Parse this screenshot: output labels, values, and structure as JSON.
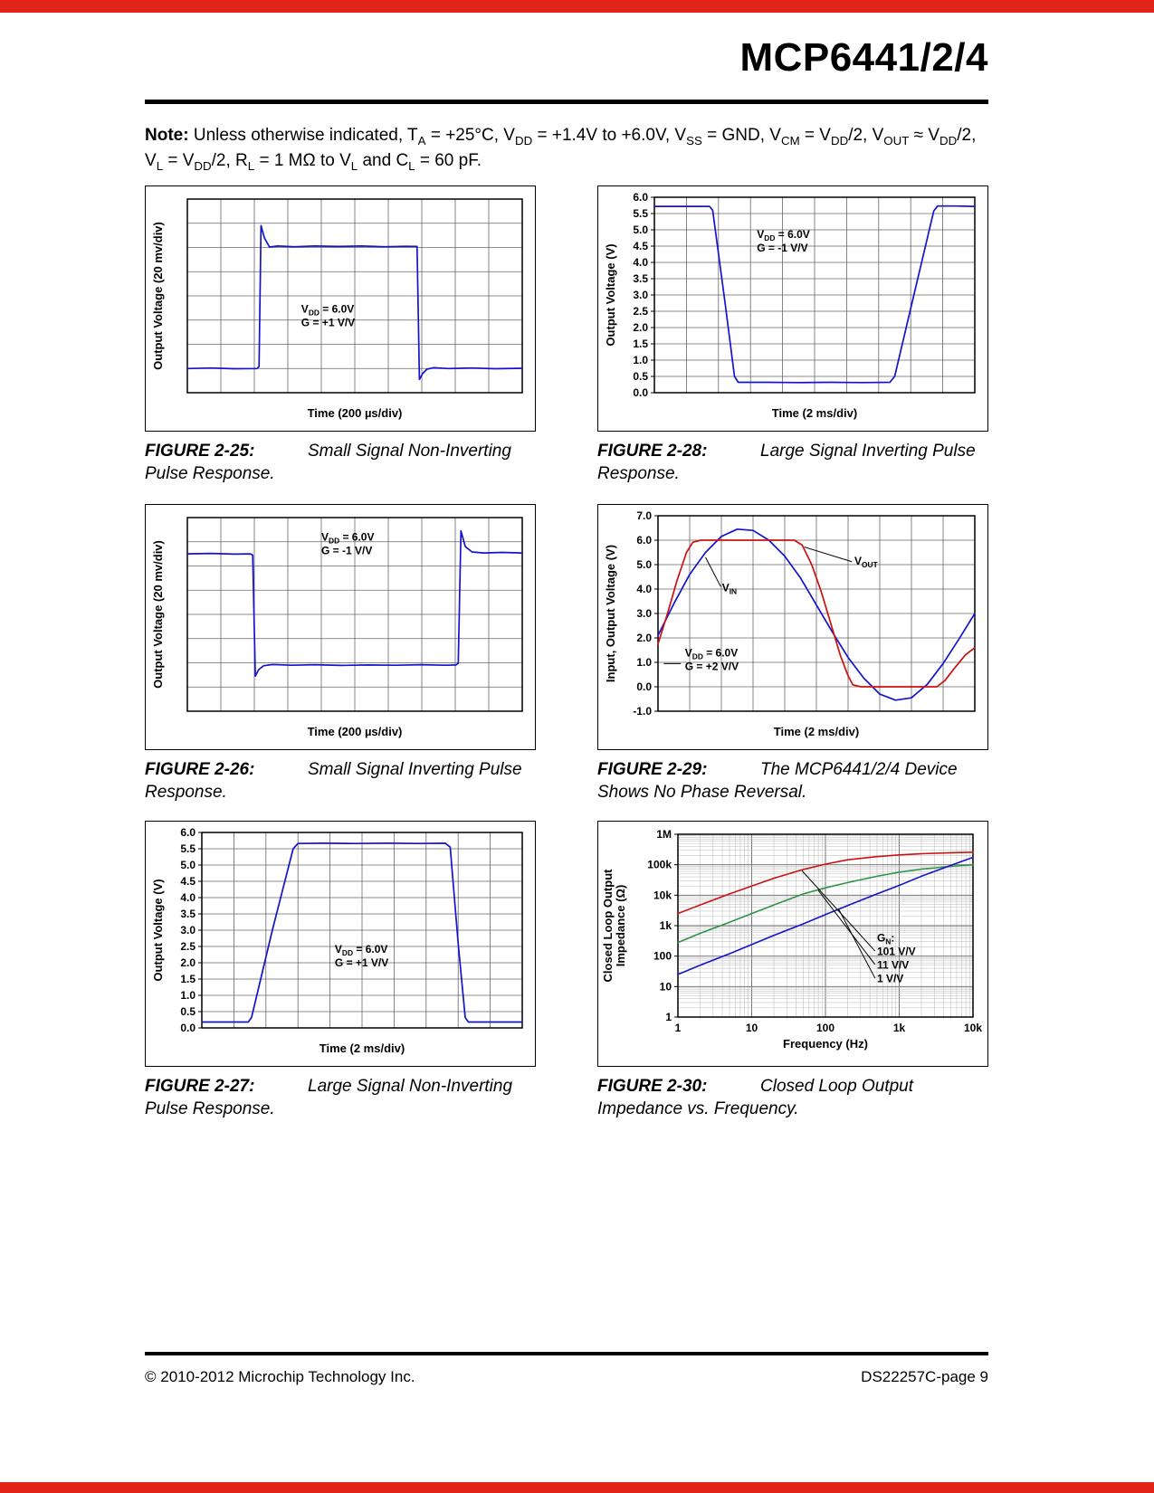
{
  "page": {
    "title": "MCP6441/2/4",
    "note_label": "Note:",
    "note_text": " Unless otherwise indicated, T~A~ = +25°C, V~DD~ = +1.4V to +6.0V, V~SS~ = GND, V~CM~ = V~DD~/2, V~OUT~ ≈ V~DD~/2, V~L~ = V~DD~/2, R~L~ = 1 MΩ to V~L~ and C~L~ = 60 pF.",
    "footer_left": "© 2010-2012 Microchip Technology Inc.",
    "footer_right": "DS22257C-page 9"
  },
  "colors": {
    "brand_red": "#E2231A",
    "trace_blue": "#1414CC",
    "trace_red": "#CC1111",
    "trace_green": "#2E9444"
  },
  "figures": [
    {
      "label": "FIGURE 2-25:",
      "caption": "Small Signal Non-Inverting Pulse Response.",
      "chart_data": {
        "type": "line",
        "xscale": "linear",
        "yscale": "linear",
        "xlim": [
          0,
          10
        ],
        "ylim": [
          0,
          8
        ],
        "xlabel": "Time (200 µs/div)",
        "ylabel": "Output Voltage (20 mv/div)",
        "xgrid": [
          1,
          2,
          3,
          4,
          5,
          6,
          7,
          8,
          9
        ],
        "ygrid": [
          1,
          2,
          3,
          4,
          5,
          6,
          7
        ],
        "margins": {
          "l": 46,
          "t": 14,
          "r": 14,
          "b": 42
        },
        "series": [
          {
            "name": "output",
            "color": "#1414CC",
            "width": 1.7,
            "x": [
              0,
              0.7,
              1.4,
              2.08,
              2.14,
              2.2,
              2.3,
              2.45,
              2.7,
              3.2,
              3.8,
              4.5,
              5.2,
              5.9,
              6.5,
              6.86,
              6.93,
              7.03,
              7.15,
              7.35,
              7.8,
              8.5,
              9.2,
              10
            ],
            "y": [
              1.0,
              1.02,
              0.99,
              1.0,
              1.08,
              6.9,
              6.4,
              6.02,
              6.06,
              6.03,
              6.06,
              6.04,
              6.06,
              6.03,
              6.05,
              6.04,
              0.55,
              0.8,
              0.97,
              1.03,
              1.0,
              1.02,
              0.99,
              1.01
            ]
          }
        ],
        "annotations": [
          {
            "x": 3.4,
            "y": 3.3,
            "lines": [
              "V~DD~ = 6.0V",
              "G = +1 V/V"
            ]
          }
        ]
      }
    },
    {
      "label": "FIGURE 2-26:",
      "caption": "Small Signal Inverting Pulse Response.",
      "chart_data": {
        "type": "line",
        "xscale": "linear",
        "yscale": "linear",
        "xlim": [
          0,
          10
        ],
        "ylim": [
          0,
          8
        ],
        "xlabel": "Time (200 µs/div)",
        "ylabel": "Output Voltage (20 mv/div)",
        "xgrid": [
          1,
          2,
          3,
          4,
          5,
          6,
          7,
          8,
          9
        ],
        "ygrid": [
          1,
          2,
          3,
          4,
          5,
          6,
          7
        ],
        "margins": {
          "l": 46,
          "t": 14,
          "r": 14,
          "b": 42
        },
        "series": [
          {
            "name": "output",
            "color": "#1414CC",
            "width": 1.7,
            "x": [
              0,
              0.7,
              1.4,
              1.88,
              1.95,
              2.03,
              2.13,
              2.28,
              2.55,
              3.1,
              3.8,
              4.6,
              5.4,
              6.2,
              7.0,
              7.7,
              8.02,
              8.09,
              8.17,
              8.3,
              8.5,
              8.85,
              9.4,
              10
            ],
            "y": [
              6.5,
              6.52,
              6.49,
              6.5,
              6.45,
              1.45,
              1.72,
              1.88,
              1.93,
              1.9,
              1.92,
              1.89,
              1.91,
              1.9,
              1.92,
              1.9,
              1.91,
              1.98,
              7.45,
              6.8,
              6.58,
              6.54,
              6.56,
              6.54
            ]
          }
        ],
        "annotations": [
          {
            "x": 4.0,
            "y": 7.05,
            "lines": [
              "V~DD~ = 6.0V",
              "G = -1 V/V"
            ]
          }
        ]
      }
    },
    {
      "label": "FIGURE 2-27:",
      "caption": "Large Signal Non-Inverting Pulse Response.",
      "chart_data": {
        "type": "line",
        "xscale": "linear",
        "yscale": "linear",
        "xlim": [
          0,
          10
        ],
        "ylim": [
          0,
          6
        ],
        "xlabel": "Time (2 ms/div)",
        "ylabel": "Output Voltage (V)",
        "xgrid": [
          1,
          2,
          3,
          4,
          5,
          6,
          7,
          8,
          9
        ],
        "ygrid": [
          0.5,
          1,
          1.5,
          2,
          2.5,
          3,
          3.5,
          4,
          4.5,
          5,
          5.5
        ],
        "yticks": [
          {
            "v": 0,
            "l": "0.0"
          },
          {
            "v": 0.5,
            "l": "0.5"
          },
          {
            "v": 1,
            "l": "1.0"
          },
          {
            "v": 1.5,
            "l": "1.5"
          },
          {
            "v": 2,
            "l": "2.0"
          },
          {
            "v": 2.5,
            "l": "2.5"
          },
          {
            "v": 3,
            "l": "3.0"
          },
          {
            "v": 3.5,
            "l": "3.5"
          },
          {
            "v": 4,
            "l": "4.0"
          },
          {
            "v": 4.5,
            "l": "4.5"
          },
          {
            "v": 5,
            "l": "5.0"
          },
          {
            "v": 5.5,
            "l": "5.5"
          },
          {
            "v": 6,
            "l": "6.0"
          }
        ],
        "margins": {
          "l": 62,
          "t": 12,
          "r": 14,
          "b": 42
        },
        "series": [
          {
            "name": "output",
            "color": "#1414CC",
            "width": 1.7,
            "x": [
              0,
              0.8,
              1.45,
              1.55,
              2.2,
              2.85,
              3.0,
              3.8,
              4.8,
              5.8,
              6.8,
              7.6,
              7.75,
              8.0,
              8.22,
              8.32,
              9.1,
              10
            ],
            "y": [
              0.18,
              0.18,
              0.18,
              0.32,
              3.0,
              5.5,
              5.66,
              5.67,
              5.66,
              5.67,
              5.66,
              5.67,
              5.55,
              2.6,
              0.32,
              0.18,
              0.18,
              0.18
            ]
          }
        ],
        "annotations": [
          {
            "x": 4.15,
            "y": 2.3,
            "lines": [
              "V~DD~ = 6.0V",
              "G = +1 V/V"
            ]
          }
        ]
      }
    },
    {
      "label": "FIGURE 2-28:",
      "caption": "Large Signal Inverting Pulse Response.",
      "chart_data": {
        "type": "line",
        "xscale": "linear",
        "yscale": "linear",
        "xlim": [
          0,
          10
        ],
        "ylim": [
          0,
          6
        ],
        "xlabel": "Time (2 ms/div)",
        "ylabel": "Output Voltage (V)",
        "xgrid": [
          1,
          2,
          3,
          4,
          5,
          6,
          7,
          8,
          9
        ],
        "ygrid": [
          0.5,
          1,
          1.5,
          2,
          2.5,
          3,
          3.5,
          4,
          4.5,
          5,
          5.5
        ],
        "yticks": [
          {
            "v": 0,
            "l": "0.0"
          },
          {
            "v": 0.5,
            "l": "0.5"
          },
          {
            "v": 1,
            "l": "1.0"
          },
          {
            "v": 1.5,
            "l": "1.5"
          },
          {
            "v": 2,
            "l": "2.0"
          },
          {
            "v": 2.5,
            "l": "2.5"
          },
          {
            "v": 3,
            "l": "3.0"
          },
          {
            "v": 3.5,
            "l": "3.5"
          },
          {
            "v": 4,
            "l": "4.0"
          },
          {
            "v": 4.5,
            "l": "4.5"
          },
          {
            "v": 5,
            "l": "5.0"
          },
          {
            "v": 5.5,
            "l": "5.5"
          },
          {
            "v": 6,
            "l": "6.0"
          }
        ],
        "margins": {
          "l": 62,
          "t": 12,
          "r": 14,
          "b": 42
        },
        "series": [
          {
            "name": "output",
            "color": "#1414CC",
            "width": 1.7,
            "x": [
              0,
              0.9,
              1.72,
              1.82,
              2.2,
              2.5,
              2.62,
              3.5,
              4.5,
              5.5,
              6.5,
              7.35,
              7.5,
              8.1,
              8.72,
              8.84,
              9.4,
              10
            ],
            "y": [
              5.72,
              5.72,
              5.72,
              5.6,
              2.8,
              0.5,
              0.32,
              0.32,
              0.31,
              0.32,
              0.31,
              0.32,
              0.5,
              3.0,
              5.58,
              5.73,
              5.73,
              5.72
            ]
          }
        ],
        "annotations": [
          {
            "x": 3.2,
            "y": 4.75,
            "lines": [
              "V~DD~ = 6.0V",
              "G = -1 V/V"
            ]
          }
        ]
      }
    },
    {
      "label": "FIGURE 2-29:",
      "caption": "The MCP6441/2/4 Device Shows No Phase Reversal.",
      "chart_data": {
        "type": "line",
        "xscale": "linear",
        "yscale": "linear",
        "xlim": [
          0,
          10
        ],
        "ylim": [
          -1,
          7
        ],
        "xlabel": "Time (2 ms/div)",
        "ylabel": "Input, Output Voltage (V)",
        "xgrid": [
          1,
          2,
          3,
          4,
          5,
          6,
          7,
          8,
          9
        ],
        "ygrid": [
          0,
          1,
          2,
          3,
          4,
          5,
          6
        ],
        "yticks": [
          {
            "v": -1,
            "l": "-1.0"
          },
          {
            "v": 0,
            "l": "0.0"
          },
          {
            "v": 1,
            "l": "1.0"
          },
          {
            "v": 2,
            "l": "2.0"
          },
          {
            "v": 3,
            "l": "3.0"
          },
          {
            "v": 4,
            "l": "4.0"
          },
          {
            "v": 5,
            "l": "5.0"
          },
          {
            "v": 6,
            "l": "6.0"
          },
          {
            "v": 7,
            "l": "7.0"
          }
        ],
        "margins": {
          "l": 66,
          "t": 12,
          "r": 14,
          "b": 42
        },
        "series": [
          {
            "name": "vin",
            "color": "#1414CC",
            "width": 1.7,
            "x": [
              0,
              0.5,
              1,
              1.5,
              2,
              2.5,
              3,
              3.5,
              4,
              4.5,
              5,
              5.5,
              6,
              6.5,
              7,
              7.5,
              8,
              8.5,
              9,
              9.5,
              10
            ],
            "y": [
              2.1,
              3.4,
              4.6,
              5.5,
              6.15,
              6.45,
              6.4,
              6.0,
              5.35,
              4.45,
              3.35,
              2.25,
              1.2,
              0.35,
              -0.3,
              -0.55,
              -0.45,
              0.1,
              0.95,
              1.95,
              3.0
            ]
          },
          {
            "name": "vout",
            "color": "#CC1111",
            "width": 1.7,
            "x": [
              0,
              0.3,
              0.6,
              0.9,
              1.1,
              1.35,
              4.3,
              4.55,
              4.85,
              5.15,
              5.45,
              5.75,
              6.0,
              6.15,
              6.4,
              8.8,
              9.05,
              9.35,
              9.7,
              10
            ],
            "y": [
              1.75,
              3.0,
              4.35,
              5.5,
              5.92,
              6.0,
              6.0,
              5.8,
              5.0,
              3.9,
              2.6,
              1.3,
              0.45,
              0.08,
              0.0,
              0.0,
              0.25,
              0.75,
              1.3,
              1.6
            ]
          }
        ],
        "leaders": [
          {
            "x1": 1.98,
            "y1": 4.1,
            "x2": 1.5,
            "y2": 5.3
          },
          {
            "x1": 6.12,
            "y1": 5.12,
            "x2": 4.62,
            "y2": 5.72
          },
          {
            "x1": 0.18,
            "y1": 0.95,
            "x2": 0.72,
            "y2": 0.95
          }
        ],
        "annotations": [
          {
            "x": 2.02,
            "y": 3.9,
            "lines": [
              "V~IN~"
            ]
          },
          {
            "x": 6.2,
            "y": 5.0,
            "lines": [
              "V~OUT~"
            ]
          },
          {
            "x": 0.85,
            "y": 1.25,
            "lines": [
              "V~DD~ = 6.0V",
              "G = +2 V/V"
            ]
          }
        ]
      }
    },
    {
      "label": "FIGURE 2-30:",
      "caption": "Closed Loop Output Impedance vs. Frequency.",
      "chart_data": {
        "type": "line",
        "xscale": "log",
        "yscale": "log",
        "xlim": [
          1,
          10000
        ],
        "ylim": [
          1,
          1000000
        ],
        "xlabel": "Frequency (Hz)",
        "ylabel": "Closed Loop Output\nImpedance (Ω)",
        "ylabel_x": 15,
        "xticks": [
          {
            "v": 1,
            "l": "1"
          },
          {
            "v": 10,
            "l": "10"
          },
          {
            "v": 100,
            "l": "100"
          },
          {
            "v": 1000,
            "l": "1k"
          },
          {
            "v": 10000,
            "l": "10k"
          }
        ],
        "yticks": [
          {
            "v": 1,
            "l": "1"
          },
          {
            "v": 10,
            "l": "10"
          },
          {
            "v": 100,
            "l": "100"
          },
          {
            "v": 1000,
            "l": "1k"
          },
          {
            "v": 10000,
            "l": "10k"
          },
          {
            "v": 100000,
            "l": "100k"
          },
          {
            "v": 1000000,
            "l": "1M"
          }
        ],
        "margins": {
          "l": 88,
          "t": 14,
          "r": 16,
          "b": 54
        },
        "series": [
          {
            "name": "gain-101",
            "color": "#CC1111",
            "width": 1.6,
            "x": [
              1,
              2,
              5,
              10,
              20,
              50,
              100,
              200,
              500,
              1000,
              2000,
              5000,
              10000
            ],
            "y": [
              2500,
              4800,
              11000,
              20000,
              36000,
              70000,
              105000,
              145000,
              185000,
              210000,
              230000,
              248000,
              258000
            ]
          },
          {
            "name": "gain-11",
            "color": "#2E9444",
            "width": 1.6,
            "x": [
              1,
              2,
              5,
              10,
              20,
              50,
              100,
              200,
              500,
              1000,
              2000,
              5000,
              10000
            ],
            "y": [
              280,
              560,
              1300,
              2500,
              4800,
              11000,
              17500,
              26000,
              42000,
              57000,
              72000,
              88000,
              100000
            ]
          },
          {
            "name": "gain-1",
            "color": "#1414CC",
            "width": 1.6,
            "x": [
              1,
              2,
              5,
              10,
              20,
              50,
              100,
              200,
              500,
              1000,
              2000,
              5000,
              10000
            ],
            "y": [
              25,
              50,
              120,
              240,
              480,
              1150,
              2300,
              4600,
              11000,
              21000,
              42000,
              95000,
              175000
            ]
          }
        ],
        "leaders": [
          {
            "x1": 470,
            "y1": 147,
            "x2": 48,
            "y2": 64000
          },
          {
            "x1": 470,
            "y1": 53,
            "x2": 80,
            "y2": 14500
          },
          {
            "x1": 470,
            "y1": 19,
            "x2": 150,
            "y2": 3600
          }
        ],
        "annotations": [
          {
            "x": 500,
            "y": 300,
            "lines": [
              "G~N~:",
              "101 V/V",
              "11 V/V",
              "1 V/V"
            ]
          }
        ]
      }
    }
  ]
}
